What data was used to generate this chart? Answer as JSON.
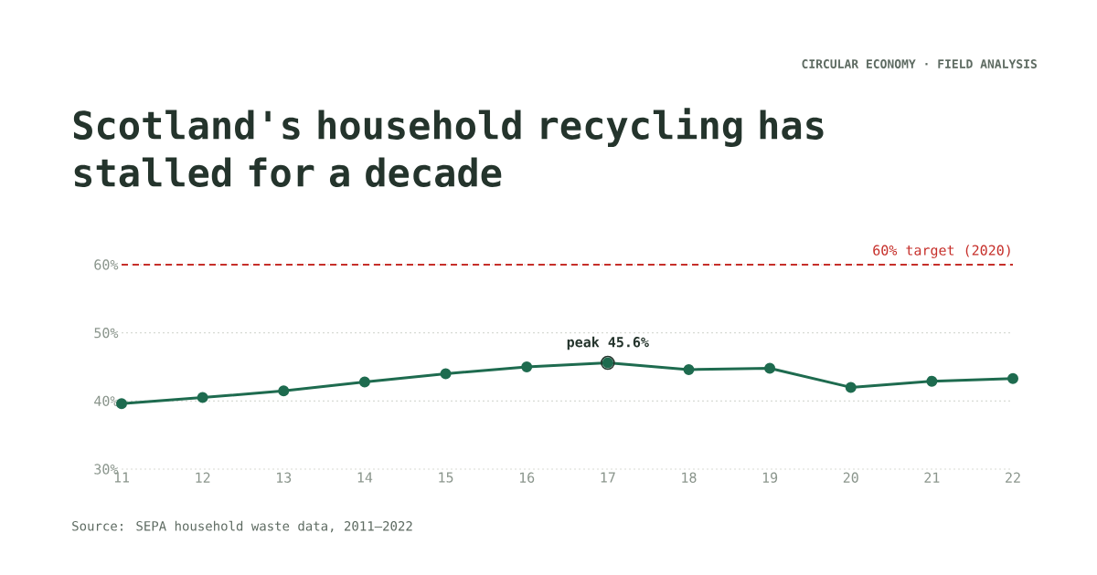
{
  "chart_data": {
    "type": "line",
    "title": "Scotland's household recycling has stalled for a decade",
    "x": [
      11,
      12,
      13,
      14,
      15,
      16,
      17,
      18,
      19,
      20,
      21,
      22
    ],
    "series": [
      {
        "color": "#1e6b4f",
        "values": [
          39.6,
          40.5,
          41.5,
          42.8,
          44.0,
          45.0,
          45.6,
          44.6,
          44.8,
          42.0,
          42.9,
          43.3
        ]
      }
    ],
    "xlim": [
      11,
      22
    ],
    "xticks": [
      11,
      12,
      13,
      14,
      15,
      16,
      17,
      18,
      19,
      20,
      21,
      22
    ],
    "ylim": [
      30,
      60
    ],
    "yticks": [
      {
        "value": 30,
        "label": "30%"
      },
      {
        "value": 40,
        "label": "40%"
      },
      {
        "value": 50,
        "label": "50%"
      },
      {
        "value": 60,
        "label": "60%"
      }
    ],
    "grid": "y",
    "marker": "circle",
    "line_style": "solid",
    "ref_lines": [
      {
        "axis": "y",
        "value": 60,
        "label": "60% target (2020)",
        "color": "#c62f2a",
        "line_style": "dashed"
      }
    ],
    "annotations": [
      "CIRCULAR ECONOMY · FIELD ANALYSIS",
      {
        "text": "peak 45.6%",
        "x": 17,
        "y": 45.6
      },
      "Source: SEPA household waste data, 2011–2022"
    ]
  }
}
